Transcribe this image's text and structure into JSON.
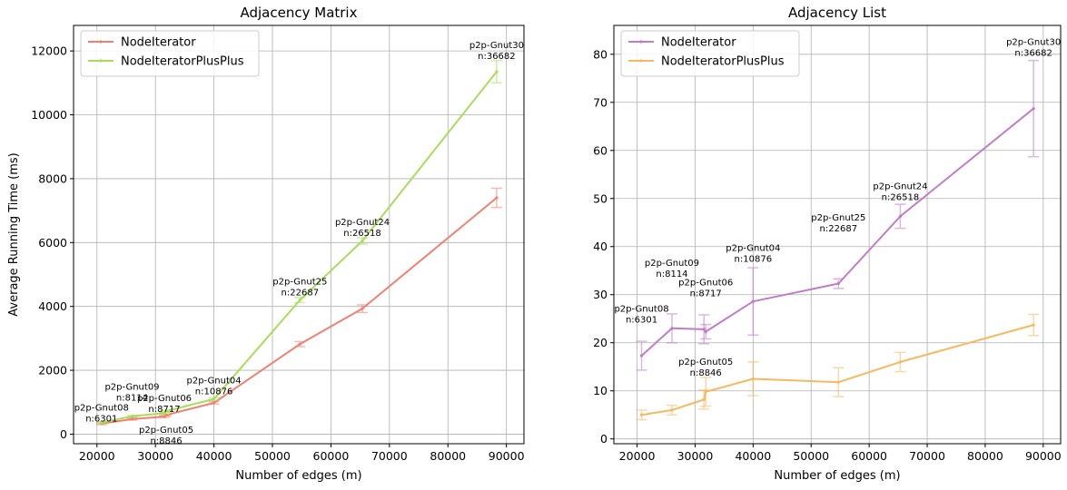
{
  "chart_data": [
    {
      "type": "line",
      "title": "Adjacency Matrix",
      "xlabel": "Number of edges (m)",
      "ylabel": "Average Running Time (ms)",
      "xlim": [
        16000,
        93000
      ],
      "ylim": [
        -300,
        12800
      ],
      "xticks": [
        20000,
        30000,
        40000,
        50000,
        60000,
        70000,
        80000,
        90000
      ],
      "xtick_labels": [
        "20000",
        "30000",
        "40000",
        "50000",
        "60000",
        "70000",
        "80000",
        "90000"
      ],
      "yticks": [
        0,
        2000,
        4000,
        6000,
        8000,
        10000,
        12000
      ],
      "ytick_labels": [
        "0",
        "2000",
        "4000",
        "6000",
        "8000",
        "10000",
        "12000"
      ],
      "grid": true,
      "legend_position": "top-left",
      "series": [
        {
          "name": "NodeIterator",
          "color": "#f08070",
          "x": [
            20777,
            26013,
            31525,
            31839,
            39994,
            54705,
            65369,
            88328
          ],
          "y": [
            330,
            470,
            550,
            600,
            980,
            2820,
            3930,
            7400
          ],
          "err": [
            30,
            30,
            30,
            30,
            40,
            80,
            120,
            300
          ]
        },
        {
          "name": "NodeIteratorPlusPlus",
          "color": "#a8dc5a",
          "x": [
            20777,
            26013,
            31525,
            31839,
            39994,
            54705,
            65369,
            88328
          ],
          "y": [
            360,
            560,
            660,
            720,
            1100,
            4200,
            6050,
            11350
          ],
          "err": [
            30,
            30,
            30,
            30,
            40,
            80,
            100,
            350
          ]
        }
      ],
      "annotations": [
        {
          "name": "p2p-Gnut08",
          "n": "n:6301",
          "x": 20777,
          "y": 600
        },
        {
          "name": "p2p-Gnut09",
          "n": "n:8114",
          "x": 26013,
          "y": 1250
        },
        {
          "name": "p2p-Gnut06",
          "n": "n:8717",
          "x": 31525,
          "y": 900
        },
        {
          "name": "p2p-Gnut05",
          "n": "n:8846",
          "x": 31839,
          "y": -100
        },
        {
          "name": "p2p-Gnut04",
          "n": "n:10876",
          "x": 39994,
          "y": 1450
        },
        {
          "name": "p2p-Gnut25",
          "n": "n:22687",
          "x": 54705,
          "y": 4550
        },
        {
          "name": "p2p-Gnut24",
          "n": "n:26518",
          "x": 65369,
          "y": 6400
        },
        {
          "name": "p2p-Gnut30",
          "n": "n:36682",
          "x": 88328,
          "y": 11950
        }
      ]
    },
    {
      "type": "line",
      "title": "Adjacency List",
      "xlabel": "Number of edges (m)",
      "ylabel": "",
      "xlim": [
        16000,
        93000
      ],
      "ylim": [
        -1,
        86
      ],
      "xticks": [
        20000,
        30000,
        40000,
        50000,
        60000,
        70000,
        80000,
        90000
      ],
      "xtick_labels": [
        "20000",
        "30000",
        "40000",
        "50000",
        "60000",
        "70000",
        "80000",
        "90000"
      ],
      "yticks": [
        0,
        10,
        20,
        30,
        40,
        50,
        60,
        70,
        80
      ],
      "ytick_labels": [
        "0",
        "10",
        "20",
        "30",
        "40",
        "50",
        "60",
        "70",
        "80"
      ],
      "grid": true,
      "legend_position": "top-left",
      "series": [
        {
          "name": "NodeIterator",
          "color": "#c07cc8",
          "x": [
            20777,
            26013,
            31525,
            31839,
            39994,
            54705,
            65369,
            88328
          ],
          "y": [
            17.3,
            23.0,
            22.8,
            22.3,
            28.6,
            32.3,
            46.3,
            68.7
          ],
          "err": [
            3.0,
            3.0,
            3.0,
            1.5,
            7.0,
            1.0,
            2.5,
            10.0
          ]
        },
        {
          "name": "NodeIteratorPlusPlus",
          "color": "#f8b860",
          "x": [
            20777,
            26013,
            31525,
            31839,
            39994,
            54705,
            65369,
            88328
          ],
          "y": [
            5.0,
            6.0,
            8.2,
            9.8,
            12.5,
            11.8,
            16.0,
            23.7
          ],
          "err": [
            1.0,
            1.0,
            2.0,
            3.0,
            3.5,
            3.0,
            2.0,
            2.2
          ]
        }
      ],
      "annotations": [
        {
          "name": "p2p-Gnut08",
          "n": "n:6301",
          "x": 20777,
          "y": 25.5
        },
        {
          "name": "p2p-Gnut09",
          "n": "n:8114",
          "x": 26013,
          "y": 35.0
        },
        {
          "name": "p2p-Gnut06",
          "n": "n:8717",
          "x": 31839,
          "y": 31.0
        },
        {
          "name": "p2p-Gnut05",
          "n": "n:8846",
          "x": 31839,
          "y": 14.5
        },
        {
          "name": "p2p-Gnut04",
          "n": "n:10876",
          "x": 39994,
          "y": 38.2
        },
        {
          "name": "p2p-Gnut25",
          "n": "n:22687",
          "x": 54705,
          "y": 44.5
        },
        {
          "name": "p2p-Gnut24",
          "n": "n:26518",
          "x": 65369,
          "y": 51.0
        },
        {
          "name": "p2p-Gnut30",
          "n": "n:36682",
          "x": 88328,
          "y": 81.0
        }
      ]
    }
  ]
}
